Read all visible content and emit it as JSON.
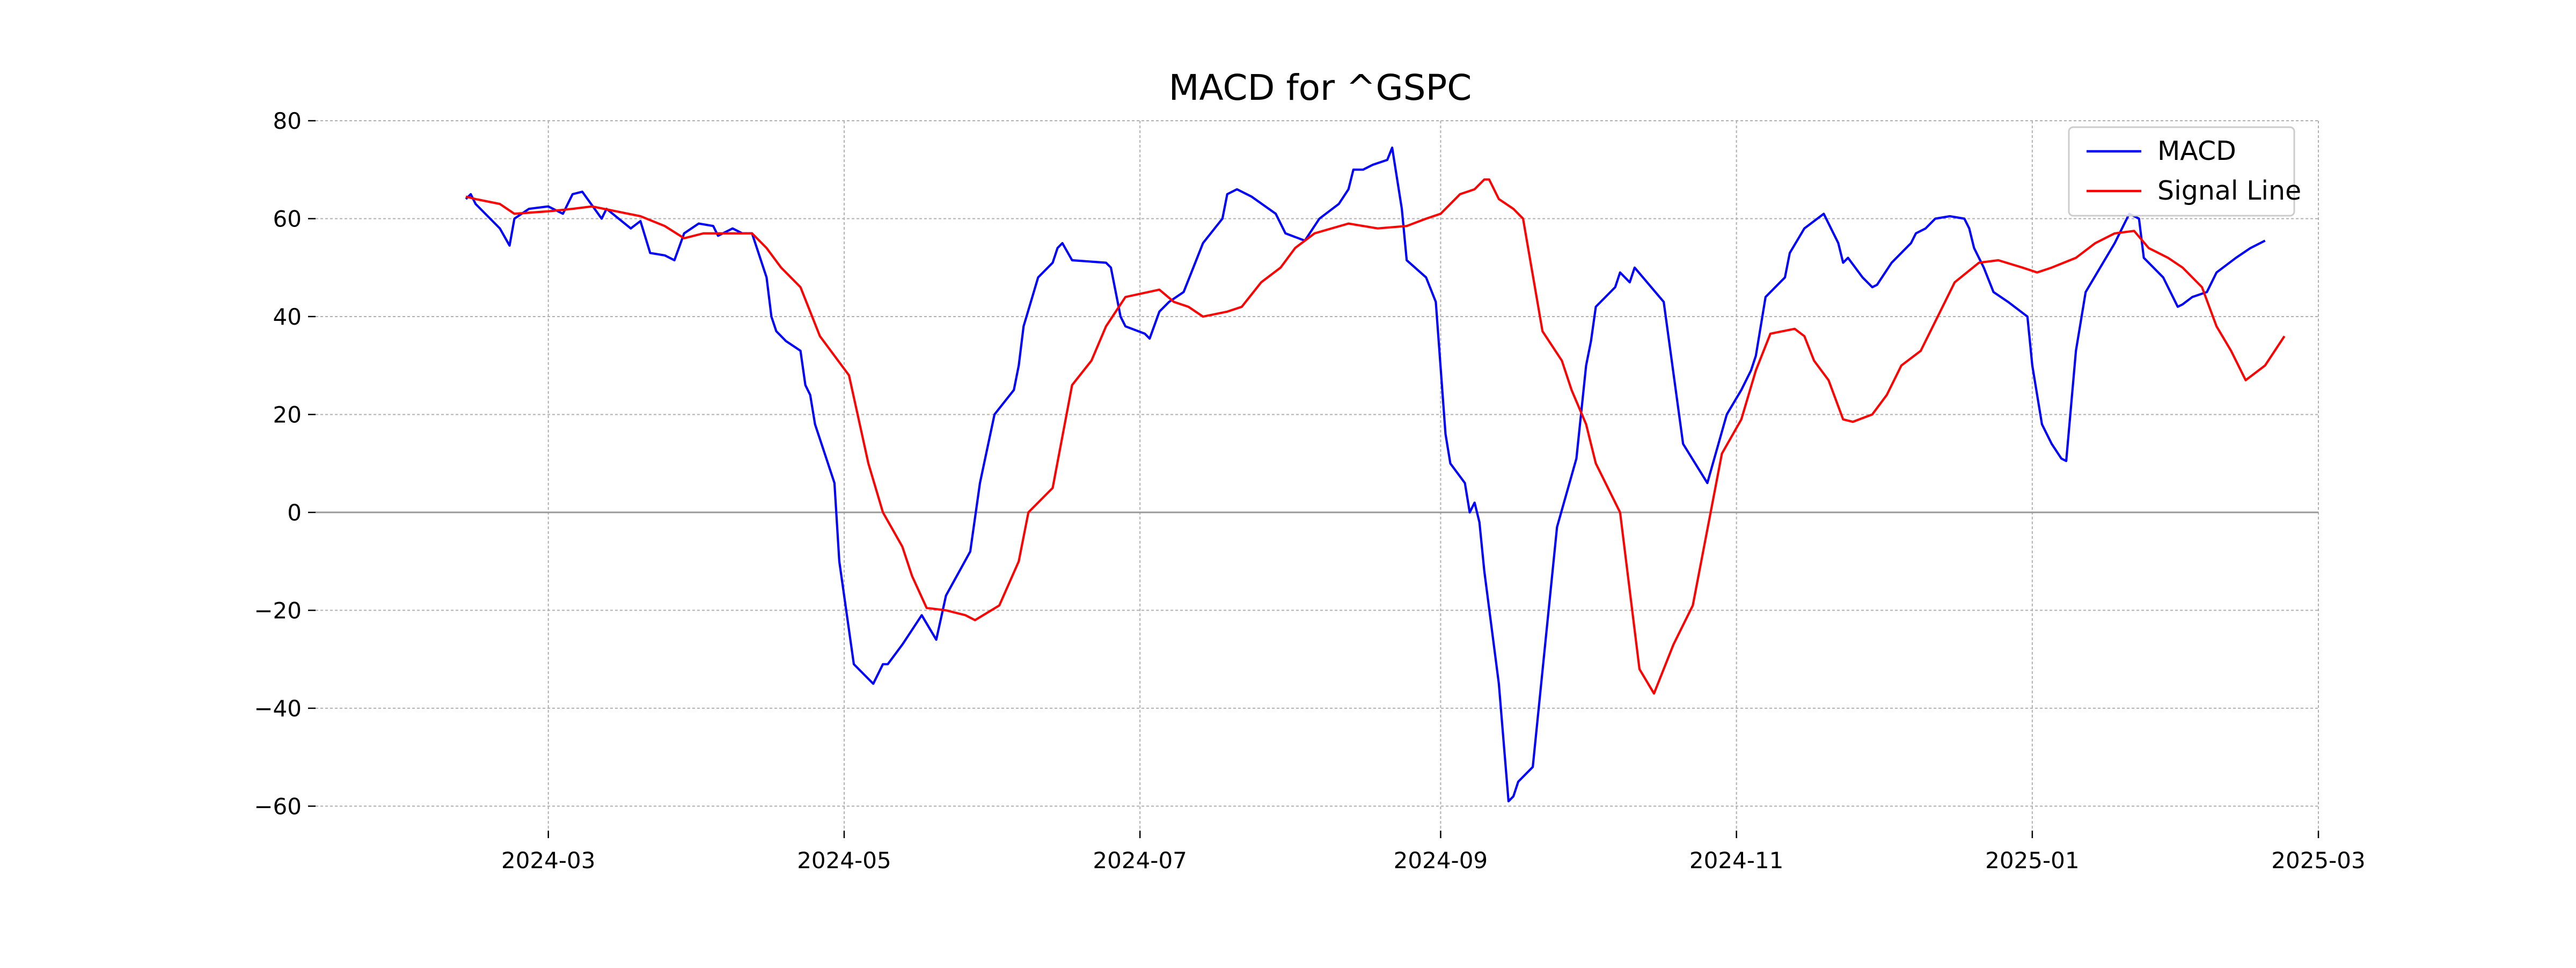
{
  "chart_data": {
    "type": "line",
    "title": "MACD for ^GSPC",
    "xlabel": "",
    "ylabel": "",
    "x_range": [
      "2024-01-13",
      "2025-03-01"
    ],
    "ylim": [
      -65,
      80
    ],
    "y_ticks": [
      80,
      60,
      40,
      20,
      0,
      -20,
      -40,
      -60
    ],
    "y_tick_labels": [
      "80",
      "60",
      "40",
      "20",
      "0",
      "−20",
      "−40",
      "−60"
    ],
    "x_ticks": [
      "2024-03-01",
      "2024-05-01",
      "2024-07-01",
      "2024-09-01",
      "2024-11-01",
      "2025-01-01",
      "2025-03-01"
    ],
    "x_tick_labels": [
      "2024-03",
      "2024-05",
      "2024-07",
      "2024-09",
      "2024-11",
      "2025-01",
      "2025-03"
    ],
    "grid": true,
    "zero_line": true,
    "legend": {
      "position": "top-right",
      "entries": [
        "MACD",
        "Signal Line"
      ]
    },
    "series": [
      {
        "name": "MACD",
        "color": "#0000ff",
        "points": [
          [
            "2024-02-13",
            64.0
          ],
          [
            "2024-02-14",
            65.0
          ],
          [
            "2024-02-15",
            63.0
          ],
          [
            "2024-02-20",
            58.0
          ],
          [
            "2024-02-22",
            54.5
          ],
          [
            "2024-02-23",
            60.0
          ],
          [
            "2024-02-26",
            62.0
          ],
          [
            "2024-03-01",
            62.5
          ],
          [
            "2024-03-04",
            61.0
          ],
          [
            "2024-03-06",
            65.0
          ],
          [
            "2024-03-08",
            65.5
          ],
          [
            "2024-03-12",
            60.0
          ],
          [
            "2024-03-13",
            62.0
          ],
          [
            "2024-03-18",
            58.0
          ],
          [
            "2024-03-20",
            59.5
          ],
          [
            "2024-03-22",
            53.0
          ],
          [
            "2024-03-25",
            52.5
          ],
          [
            "2024-03-27",
            51.5
          ],
          [
            "2024-03-29",
            57.0
          ],
          [
            "2024-04-01",
            59.0
          ],
          [
            "2024-04-04",
            58.5
          ],
          [
            "2024-04-05",
            56.5
          ],
          [
            "2024-04-08",
            58.0
          ],
          [
            "2024-04-10",
            57.0
          ],
          [
            "2024-04-12",
            57.0
          ],
          [
            "2024-04-15",
            48.0
          ],
          [
            "2024-04-16",
            40.0
          ],
          [
            "2024-04-17",
            37.0
          ],
          [
            "2024-04-19",
            35.0
          ],
          [
            "2024-04-22",
            33.0
          ],
          [
            "2024-04-23",
            26.0
          ],
          [
            "2024-04-24",
            24.0
          ],
          [
            "2024-04-25",
            18.0
          ],
          [
            "2024-04-29",
            6.0
          ],
          [
            "2024-04-30",
            -10.0
          ],
          [
            "2024-05-03",
            -31.0
          ],
          [
            "2024-05-07",
            -35.0
          ],
          [
            "2024-05-09",
            -31.0
          ],
          [
            "2024-05-10",
            -31.0
          ],
          [
            "2024-05-13",
            -27.0
          ],
          [
            "2024-05-15",
            -24.0
          ],
          [
            "2024-05-17",
            -21.0
          ],
          [
            "2024-05-20",
            -26.0
          ],
          [
            "2024-05-22",
            -17.0
          ],
          [
            "2024-05-27",
            -8.0
          ],
          [
            "2024-05-29",
            6.0
          ],
          [
            "2024-06-01",
            20.0
          ],
          [
            "2024-06-05",
            25.0
          ],
          [
            "2024-06-06",
            30.0
          ],
          [
            "2024-06-07",
            38.0
          ],
          [
            "2024-06-10",
            48.0
          ],
          [
            "2024-06-13",
            51.0
          ],
          [
            "2024-06-14",
            54.0
          ],
          [
            "2024-06-15",
            55.0
          ],
          [
            "2024-06-17",
            51.5
          ],
          [
            "2024-06-24",
            51.0
          ],
          [
            "2024-06-25",
            50.0
          ],
          [
            "2024-06-27",
            40.0
          ],
          [
            "2024-06-28",
            38.0
          ],
          [
            "2024-07-02",
            36.5
          ],
          [
            "2024-07-03",
            35.5
          ],
          [
            "2024-07-05",
            41.0
          ],
          [
            "2024-07-07",
            43.0
          ],
          [
            "2024-07-10",
            45.0
          ],
          [
            "2024-07-12",
            50.0
          ],
          [
            "2024-07-14",
            55.0
          ],
          [
            "2024-07-18",
            60.0
          ],
          [
            "2024-07-19",
            65.0
          ],
          [
            "2024-07-21",
            66.0
          ],
          [
            "2024-07-24",
            64.5
          ],
          [
            "2024-07-29",
            61.0
          ],
          [
            "2024-07-31",
            57.0
          ],
          [
            "2024-08-04",
            55.5
          ],
          [
            "2024-08-07",
            60.0
          ],
          [
            "2024-08-11",
            63.0
          ],
          [
            "2024-08-13",
            66.0
          ],
          [
            "2024-08-14",
            70.0
          ],
          [
            "2024-08-16",
            70.0
          ],
          [
            "2024-08-18",
            71.0
          ],
          [
            "2024-08-21",
            72.0
          ],
          [
            "2024-08-22",
            74.5
          ],
          [
            "2024-08-24",
            62.0
          ],
          [
            "2024-08-25",
            51.5
          ],
          [
            "2024-08-29",
            48.0
          ],
          [
            "2024-08-31",
            43.0
          ],
          [
            "2024-09-02",
            16.0
          ],
          [
            "2024-09-03",
            10.0
          ],
          [
            "2024-09-06",
            6.0
          ],
          [
            "2024-09-07",
            0.0
          ],
          [
            "2024-09-08",
            2.0
          ],
          [
            "2024-09-09",
            -2.0
          ],
          [
            "2024-09-10",
            -12.0
          ],
          [
            "2024-09-13",
            -35.0
          ],
          [
            "2024-09-15",
            -59.0
          ],
          [
            "2024-09-16",
            -58.0
          ],
          [
            "2024-09-17",
            -55.0
          ],
          [
            "2024-09-20",
            -52.0
          ],
          [
            "2024-09-25",
            -3.0
          ],
          [
            "2024-09-29",
            11.0
          ],
          [
            "2024-10-01",
            30.0
          ],
          [
            "2024-10-02",
            35.0
          ],
          [
            "2024-10-03",
            42.0
          ],
          [
            "2024-10-06",
            45.0
          ],
          [
            "2024-10-07",
            46.0
          ],
          [
            "2024-10-08",
            49.0
          ],
          [
            "2024-10-10",
            47.0
          ],
          [
            "2024-10-11",
            50.0
          ],
          [
            "2024-10-17",
            43.0
          ],
          [
            "2024-10-21",
            14.0
          ],
          [
            "2024-10-26",
            6.0
          ],
          [
            "2024-10-28",
            13.0
          ],
          [
            "2024-10-30",
            20.0
          ],
          [
            "2024-11-02",
            25.0
          ],
          [
            "2024-11-04",
            29.0
          ],
          [
            "2024-11-05",
            32.0
          ],
          [
            "2024-11-07",
            44.0
          ],
          [
            "2024-11-11",
            48.0
          ],
          [
            "2024-11-12",
            53.0
          ],
          [
            "2024-11-15",
            58.0
          ],
          [
            "2024-11-19",
            61.0
          ],
          [
            "2024-11-22",
            55.0
          ],
          [
            "2024-11-23",
            51.0
          ],
          [
            "2024-11-24",
            52.0
          ],
          [
            "2024-11-27",
            48.0
          ],
          [
            "2024-11-29",
            46.0
          ],
          [
            "2024-11-30",
            46.5
          ],
          [
            "2024-12-03",
            51.0
          ],
          [
            "2024-12-07",
            55.0
          ],
          [
            "2024-12-08",
            57.0
          ],
          [
            "2024-12-10",
            58.0
          ],
          [
            "2024-12-12",
            60.0
          ],
          [
            "2024-12-15",
            60.5
          ],
          [
            "2024-12-18",
            60.0
          ],
          [
            "2024-12-19",
            58.0
          ],
          [
            "2024-12-20",
            54.0
          ],
          [
            "2024-12-22",
            50.0
          ],
          [
            "2024-12-24",
            45.0
          ],
          [
            "2024-12-27",
            43.0
          ],
          [
            "2024-12-31",
            40.0
          ],
          [
            "2025-01-01",
            30.0
          ],
          [
            "2025-01-03",
            18.0
          ],
          [
            "2025-01-05",
            14.0
          ],
          [
            "2025-01-07",
            11.0
          ],
          [
            "2025-01-08",
            10.5
          ],
          [
            "2025-01-10",
            33.0
          ],
          [
            "2025-01-12",
            45.0
          ],
          [
            "2025-01-15",
            50.0
          ],
          [
            "2025-01-18",
            55.0
          ],
          [
            "2025-01-21",
            61.0
          ],
          [
            "2025-01-23",
            60.0
          ],
          [
            "2025-01-24",
            52.0
          ],
          [
            "2025-01-28",
            48.0
          ],
          [
            "2025-01-31",
            42.0
          ],
          [
            "2025-02-01",
            42.5
          ],
          [
            "2025-02-03",
            44.0
          ],
          [
            "2025-02-06",
            45.0
          ],
          [
            "2025-02-08",
            49.0
          ],
          [
            "2025-02-12",
            52.0
          ],
          [
            "2025-02-15",
            54.0
          ],
          [
            "2025-02-18",
            55.5
          ]
        ]
      },
      {
        "name": "Signal Line",
        "color": "#ff0000",
        "points": [
          [
            "2024-02-13",
            64.5
          ],
          [
            "2024-02-15",
            64.0
          ],
          [
            "2024-02-20",
            63.0
          ],
          [
            "2024-02-23",
            61.0
          ],
          [
            "2024-03-01",
            61.5
          ],
          [
            "2024-03-06",
            62.0
          ],
          [
            "2024-03-10",
            62.5
          ],
          [
            "2024-03-15",
            61.5
          ],
          [
            "2024-03-20",
            60.5
          ],
          [
            "2024-03-25",
            58.5
          ],
          [
            "2024-03-29",
            56.0
          ],
          [
            "2024-04-02",
            57.0
          ],
          [
            "2024-04-06",
            57.0
          ],
          [
            "2024-04-12",
            57.0
          ],
          [
            "2024-04-15",
            54.0
          ],
          [
            "2024-04-18",
            50.0
          ],
          [
            "2024-04-22",
            46.0
          ],
          [
            "2024-04-26",
            36.0
          ],
          [
            "2024-04-29",
            32.0
          ],
          [
            "2024-05-02",
            28.0
          ],
          [
            "2024-05-06",
            10.0
          ],
          [
            "2024-05-09",
            0.0
          ],
          [
            "2024-05-13",
            -7.0
          ],
          [
            "2024-05-15",
            -13.0
          ],
          [
            "2024-05-18",
            -19.5
          ],
          [
            "2024-05-22",
            -20.0
          ],
          [
            "2024-05-26",
            -21.0
          ],
          [
            "2024-05-28",
            -22.0
          ],
          [
            "2024-06-02",
            -19.0
          ],
          [
            "2024-06-06",
            -10.0
          ],
          [
            "2024-06-08",
            0.0
          ],
          [
            "2024-06-13",
            5.0
          ],
          [
            "2024-06-17",
            26.0
          ],
          [
            "2024-06-21",
            31.0
          ],
          [
            "2024-06-24",
            38.0
          ],
          [
            "2024-06-28",
            44.0
          ],
          [
            "2024-07-05",
            45.5
          ],
          [
            "2024-07-08",
            43.0
          ],
          [
            "2024-07-11",
            42.0
          ],
          [
            "2024-07-14",
            40.0
          ],
          [
            "2024-07-19",
            41.0
          ],
          [
            "2024-07-22",
            42.0
          ],
          [
            "2024-07-26",
            47.0
          ],
          [
            "2024-07-30",
            50.0
          ],
          [
            "2024-08-02",
            54.0
          ],
          [
            "2024-08-06",
            57.0
          ],
          [
            "2024-08-13",
            59.0
          ],
          [
            "2024-08-19",
            58.0
          ],
          [
            "2024-08-25",
            58.5
          ],
          [
            "2024-08-29",
            60.0
          ],
          [
            "2024-09-01",
            61.0
          ],
          [
            "2024-09-05",
            65.0
          ],
          [
            "2024-09-08",
            66.0
          ],
          [
            "2024-09-10",
            68.0
          ],
          [
            "2024-09-11",
            68.0
          ],
          [
            "2024-09-13",
            64.0
          ],
          [
            "2024-09-16",
            62.0
          ],
          [
            "2024-09-18",
            60.0
          ],
          [
            "2024-09-22",
            37.0
          ],
          [
            "2024-09-26",
            31.0
          ],
          [
            "2024-09-28",
            25.0
          ],
          [
            "2024-10-01",
            18.0
          ],
          [
            "2024-10-03",
            10.0
          ],
          [
            "2024-10-08",
            0.0
          ],
          [
            "2024-10-12",
            -32.0
          ],
          [
            "2024-10-15",
            -37.0
          ],
          [
            "2024-10-19",
            -27.0
          ],
          [
            "2024-10-23",
            -19.0
          ],
          [
            "2024-10-29",
            12.0
          ],
          [
            "2024-11-02",
            19.0
          ],
          [
            "2024-11-05",
            29.0
          ],
          [
            "2024-11-08",
            36.5
          ],
          [
            "2024-11-13",
            37.5
          ],
          [
            "2024-11-15",
            36.0
          ],
          [
            "2024-11-17",
            31.0
          ],
          [
            "2024-11-20",
            27.0
          ],
          [
            "2024-11-23",
            19.0
          ],
          [
            "2024-11-25",
            18.5
          ],
          [
            "2024-11-29",
            20.0
          ],
          [
            "2024-12-02",
            24.0
          ],
          [
            "2024-12-05",
            30.0
          ],
          [
            "2024-12-09",
            33.0
          ],
          [
            "2024-12-13",
            41.0
          ],
          [
            "2024-12-16",
            47.0
          ],
          [
            "2024-12-21",
            51.0
          ],
          [
            "2024-12-25",
            51.5
          ],
          [
            "2024-12-30",
            50.0
          ],
          [
            "2025-01-02",
            49.0
          ],
          [
            "2025-01-05",
            50.0
          ],
          [
            "2025-01-10",
            52.0
          ],
          [
            "2025-01-14",
            55.0
          ],
          [
            "2025-01-18",
            57.0
          ],
          [
            "2025-01-22",
            57.5
          ],
          [
            "2025-01-25",
            54.0
          ],
          [
            "2025-01-29",
            52.0
          ],
          [
            "2025-02-01",
            50.0
          ],
          [
            "2025-02-05",
            46.0
          ],
          [
            "2025-02-08",
            38.0
          ],
          [
            "2025-02-11",
            33.0
          ],
          [
            "2025-02-14",
            27.0
          ],
          [
            "2025-02-18",
            30.0
          ],
          [
            "2025-02-22",
            36.0
          ]
        ]
      }
    ]
  }
}
